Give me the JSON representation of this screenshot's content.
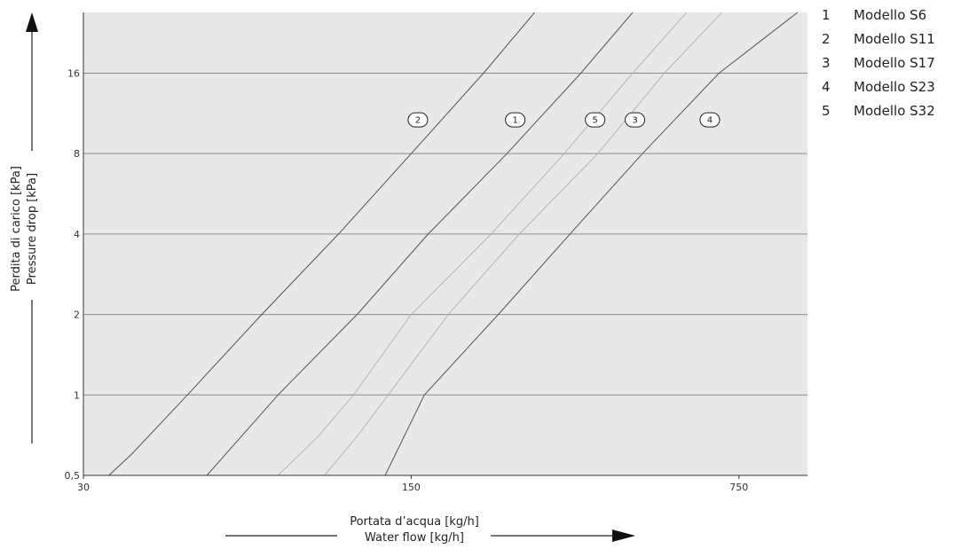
{
  "chart_data": {
    "type": "line",
    "x_scale": "log",
    "y_scale": "log",
    "xlim": [
      30,
      1050
    ],
    "ylim": [
      0.5,
      27
    ],
    "x_ticks": [
      {
        "value": 30,
        "label": "30"
      },
      {
        "value": 150,
        "label": "150"
      },
      {
        "value": 750,
        "label": "750"
      }
    ],
    "y_ticks": [
      {
        "value": 0.5,
        "label": "0,5"
      },
      {
        "value": 1,
        "label": "1"
      },
      {
        "value": 2,
        "label": "2"
      },
      {
        "value": 4,
        "label": "4"
      },
      {
        "value": 8,
        "label": "8"
      },
      {
        "value": 16,
        "label": "16"
      }
    ],
    "grid": "horizontal",
    "background_color": "#e8e8e8",
    "xlabel_lines": [
      "Portata d’acqua [kg/h]",
      "Water flow [kg/h]"
    ],
    "ylabel_lines": [
      "Perdita di carico [kPa]",
      "Pressure drop [kPa]"
    ],
    "legend_position": "top-right",
    "legend": [
      {
        "num": "1",
        "text": "Modello S6"
      },
      {
        "num": "2",
        "text": "Modello S11"
      },
      {
        "num": "3",
        "text": "Modello S17"
      },
      {
        "num": "4",
        "text": "Modello S23"
      },
      {
        "num": "5",
        "text": "Modello S32"
      }
    ],
    "series": [
      {
        "label": "2",
        "color": "#555555",
        "points": [
          [
            34,
            0.5
          ],
          [
            38,
            0.6
          ],
          [
            50,
            1.0
          ],
          [
            72,
            2.0
          ],
          [
            105,
            4.0
          ],
          [
            150,
            8.0
          ],
          [
            214,
            16.0
          ],
          [
            275,
            27.0
          ]
        ]
      },
      {
        "label": "1",
        "color": "#555555",
        "points": [
          [
            55,
            0.5
          ],
          [
            78,
            1.0
          ],
          [
            115,
            2.0
          ],
          [
            163,
            4.0
          ],
          [
            240,
            8.0
          ],
          [
            345,
            16.0
          ],
          [
            445,
            27.0
          ]
        ]
      },
      {
        "label": "5",
        "color": "#b5b5b5",
        "points": [
          [
            78,
            0.5
          ],
          [
            95,
            0.7
          ],
          [
            113,
            1.0
          ],
          [
            150,
            2.0
          ],
          [
            222,
            4.0
          ],
          [
            318,
            8.0
          ],
          [
            445,
            16.0
          ],
          [
            580,
            27.0
          ]
        ]
      },
      {
        "label": "3",
        "color": "#b5b5b5",
        "points": [
          [
            98,
            0.5
          ],
          [
            115,
            0.7
          ],
          [
            134,
            1.0
          ],
          [
            180,
            2.0
          ],
          [
            255,
            4.0
          ],
          [
            375,
            8.0
          ],
          [
            520,
            16.0
          ],
          [
            690,
            27.0
          ]
        ]
      },
      {
        "label": "4",
        "color": "#555555",
        "points": [
          [
            132,
            0.5
          ],
          [
            160,
            1.0
          ],
          [
            230,
            2.0
          ],
          [
            327,
            4.0
          ],
          [
            467,
            8.0
          ],
          [
            680,
            16.0
          ],
          [
            1000,
            27.0
          ]
        ]
      }
    ],
    "curve_label_positions": [
      {
        "label": "2",
        "x": 155,
        "y": 10.7
      },
      {
        "label": "1",
        "x": 250,
        "y": 10.7
      },
      {
        "label": "5",
        "x": 370,
        "y": 10.7
      },
      {
        "label": "3",
        "x": 450,
        "y": 10.7
      },
      {
        "label": "4",
        "x": 650,
        "y": 10.7
      }
    ]
  }
}
